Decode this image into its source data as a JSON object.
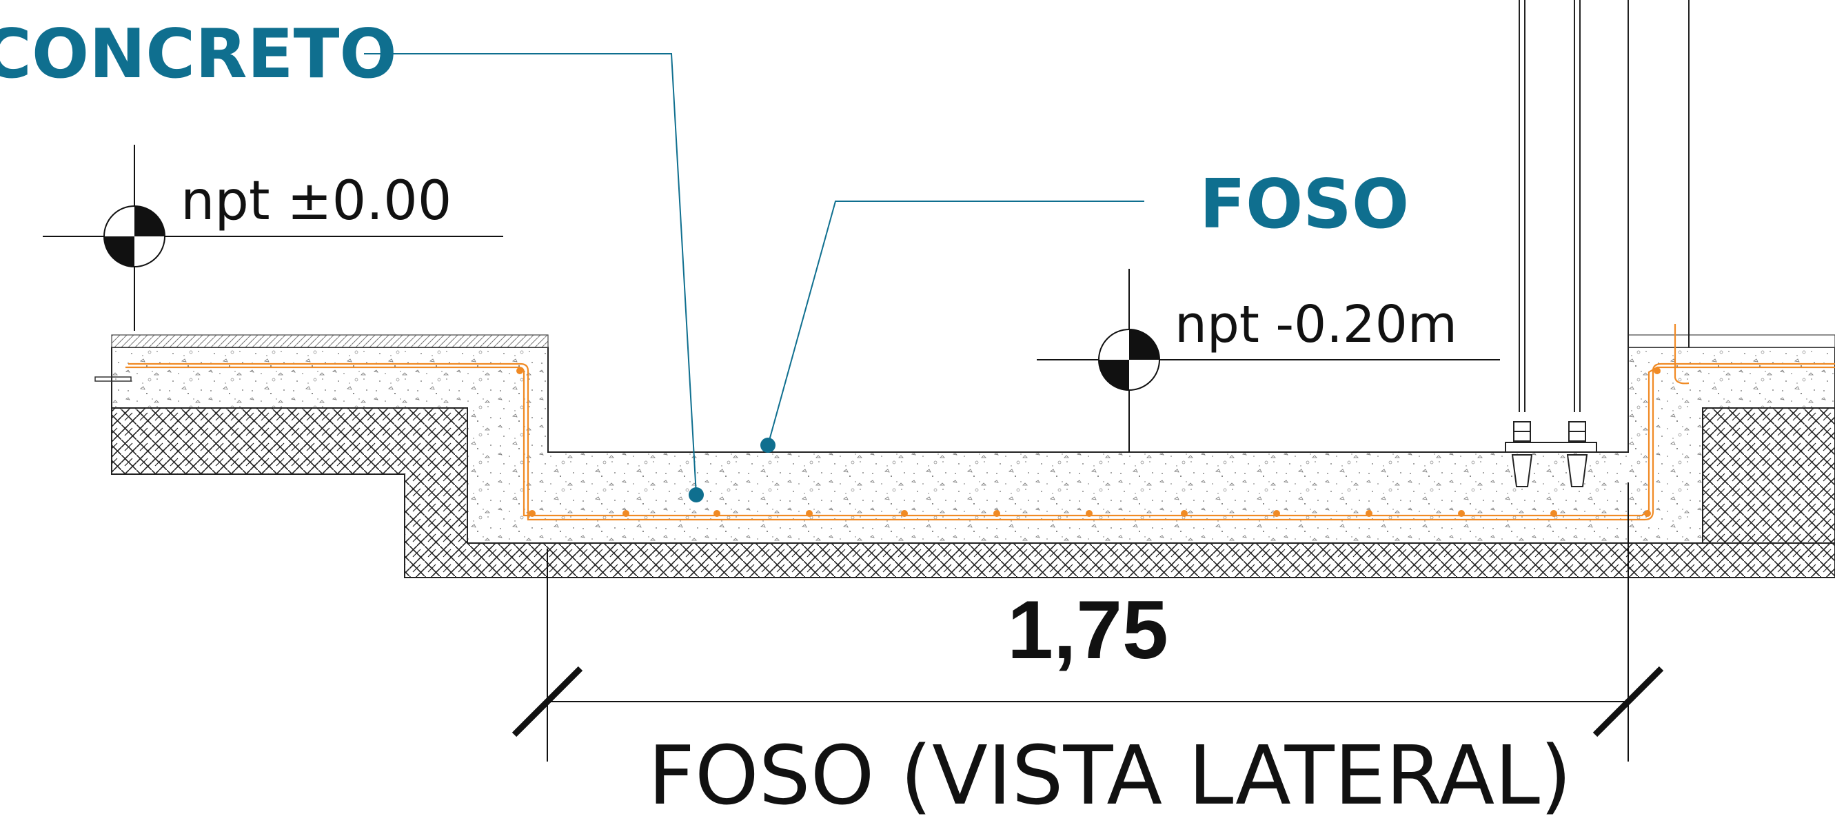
{
  "labels": {
    "concreto": "CONCRETO",
    "foso": "FOSO",
    "level_top": "npt ±0.00",
    "level_pit": "npt -0.20m",
    "dimension": "1,75",
    "title": "FOSO (VISTA LATERAL)"
  },
  "colors": {
    "accent": "#0f6f8f",
    "rebar": "#f08a24",
    "line": "#111111"
  }
}
